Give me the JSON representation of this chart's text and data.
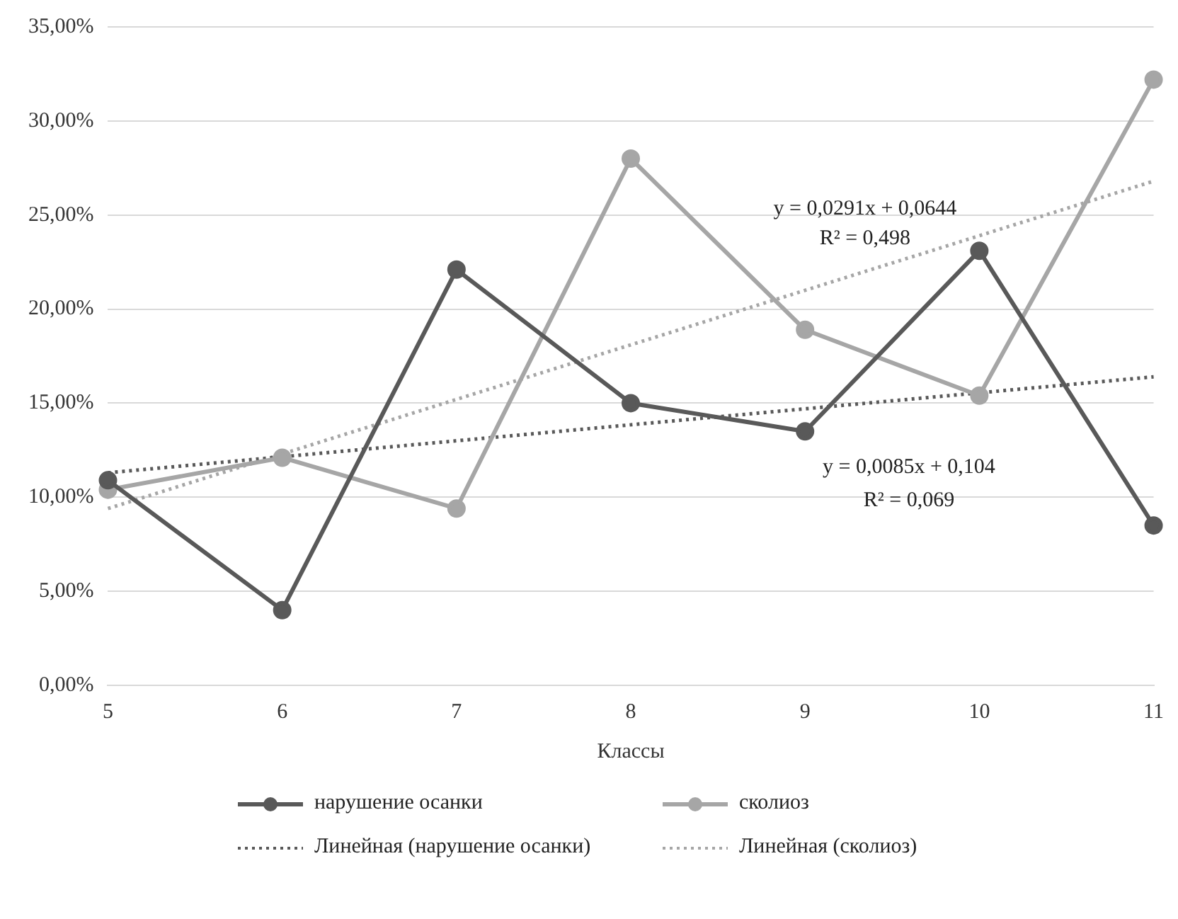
{
  "chart_data": {
    "type": "line",
    "xlabel": "Классы",
    "categories": [
      "5",
      "6",
      "7",
      "8",
      "9",
      "10",
      "11"
    ],
    "series": [
      {
        "name": "нарушение осанки",
        "color": "#595959",
        "values": [
          10.9,
          4.0,
          22.1,
          15.0,
          13.5,
          23.1,
          8.5
        ]
      },
      {
        "name": "сколиоз",
        "color": "#a6a6a6",
        "values": [
          10.4,
          12.1,
          9.4,
          28.0,
          18.9,
          15.4,
          32.2
        ]
      },
      {
        "name": "Линейная (нарушение осанки)",
        "color": "#595959",
        "x": [
          "5",
          "11"
        ],
        "values": [
          11.3,
          16.4
        ],
        "line_style": "dotted",
        "marker": "none"
      },
      {
        "name": "Линейная (сколиоз)",
        "color": "#a6a6a6",
        "x": [
          "5",
          "11"
        ],
        "values": [
          9.4,
          26.8
        ],
        "line_style": "dotted",
        "marker": "none"
      }
    ],
    "ylim": [
      0,
      35
    ],
    "yticks": [
      {
        "value": 0,
        "label": "0,00%"
      },
      {
        "value": 5,
        "label": "5,00%"
      },
      {
        "value": 10,
        "label": "10,00%"
      },
      {
        "value": 15,
        "label": "15,00%"
      },
      {
        "value": 20,
        "label": "20,00%"
      },
      {
        "value": 25,
        "label": "25,00%"
      },
      {
        "value": 30,
        "label": "30,00%"
      },
      {
        "value": 35,
        "label": "35,00%"
      }
    ],
    "grid": "y",
    "legend": "bottom",
    "marker": "circle",
    "line_style": "solid",
    "annotations": [
      "y = 0,0291x + 0,0644",
      "R² = 0,498",
      "y = 0,0085x + 0,104",
      "R² = 0,069"
    ]
  }
}
